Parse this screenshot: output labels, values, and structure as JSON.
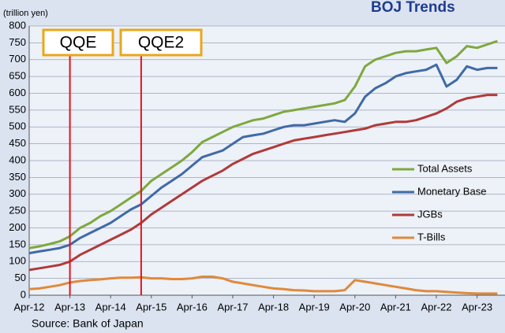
{
  "chart_data": {
    "type": "line",
    "title": "BOJ Trends",
    "y_label": "(trillion yen)",
    "source": "Source: Bank of Japan",
    "categories": [
      "Apr-12",
      null,
      null,
      null,
      "Apr-13",
      null,
      null,
      null,
      "Apr-14",
      null,
      null,
      null,
      "Apr-15",
      null,
      null,
      null,
      "Apr-16",
      null,
      null,
      null,
      "Apr-17",
      null,
      null,
      null,
      "Apr-18",
      null,
      null,
      null,
      "Apr-19",
      null,
      null,
      null,
      "Apr-20",
      null,
      null,
      null,
      "Apr-21",
      null,
      null,
      null,
      "Apr-22",
      null,
      null,
      null,
      "Apr-23",
      null,
      null
    ],
    "series": [
      {
        "name": "Total Assets",
        "color": "#7fa83e",
        "values": [
          140,
          145,
          152,
          160,
          175,
          200,
          215,
          235,
          250,
          270,
          290,
          310,
          340,
          360,
          380,
          400,
          425,
          455,
          470,
          485,
          500,
          510,
          520,
          525,
          535,
          545,
          550,
          555,
          560,
          565,
          570,
          580,
          620,
          680,
          700,
          710,
          720,
          725,
          725,
          730,
          735,
          690,
          710,
          740,
          735,
          745,
          755
        ]
      },
      {
        "name": "Monetary Base",
        "color": "#3f6aa6",
        "values": [
          125,
          130,
          135,
          140,
          150,
          170,
          185,
          200,
          215,
          235,
          255,
          270,
          295,
          320,
          340,
          360,
          385,
          410,
          420,
          430,
          450,
          470,
          475,
          480,
          490,
          500,
          505,
          505,
          510,
          515,
          520,
          515,
          540,
          590,
          615,
          630,
          650,
          660,
          665,
          670,
          685,
          620,
          640,
          680,
          670,
          675,
          675
        ]
      },
      {
        "name": "JGBs",
        "color": "#b03a3a",
        "values": [
          75,
          80,
          85,
          90,
          100,
          120,
          135,
          150,
          165,
          180,
          195,
          215,
          240,
          260,
          280,
          300,
          320,
          340,
          355,
          370,
          390,
          405,
          420,
          430,
          440,
          450,
          460,
          465,
          470,
          475,
          480,
          485,
          490,
          495,
          505,
          510,
          515,
          515,
          520,
          530,
          540,
          555,
          575,
          585,
          590,
          595,
          595
        ]
      },
      {
        "name": "T-Bills",
        "color": "#e0893a",
        "values": [
          18,
          20,
          25,
          30,
          38,
          42,
          45,
          47,
          50,
          52,
          52,
          53,
          50,
          50,
          48,
          48,
          50,
          55,
          55,
          50,
          40,
          35,
          30,
          25,
          20,
          18,
          15,
          14,
          12,
          12,
          12,
          15,
          45,
          40,
          35,
          30,
          25,
          20,
          15,
          12,
          12,
          10,
          8,
          6,
          5,
          5,
          5
        ]
      }
    ],
    "annotations": [
      {
        "text": "QQE",
        "x": 4
      },
      {
        "text": "QQE2",
        "x": 11
      }
    ],
    "ylim": [
      0,
      800
    ],
    "yticks": [
      0,
      50,
      100,
      150,
      200,
      250,
      300,
      350,
      400,
      450,
      500,
      550,
      600,
      650,
      700,
      750,
      800
    ],
    "grid": true,
    "legend": "right"
  }
}
